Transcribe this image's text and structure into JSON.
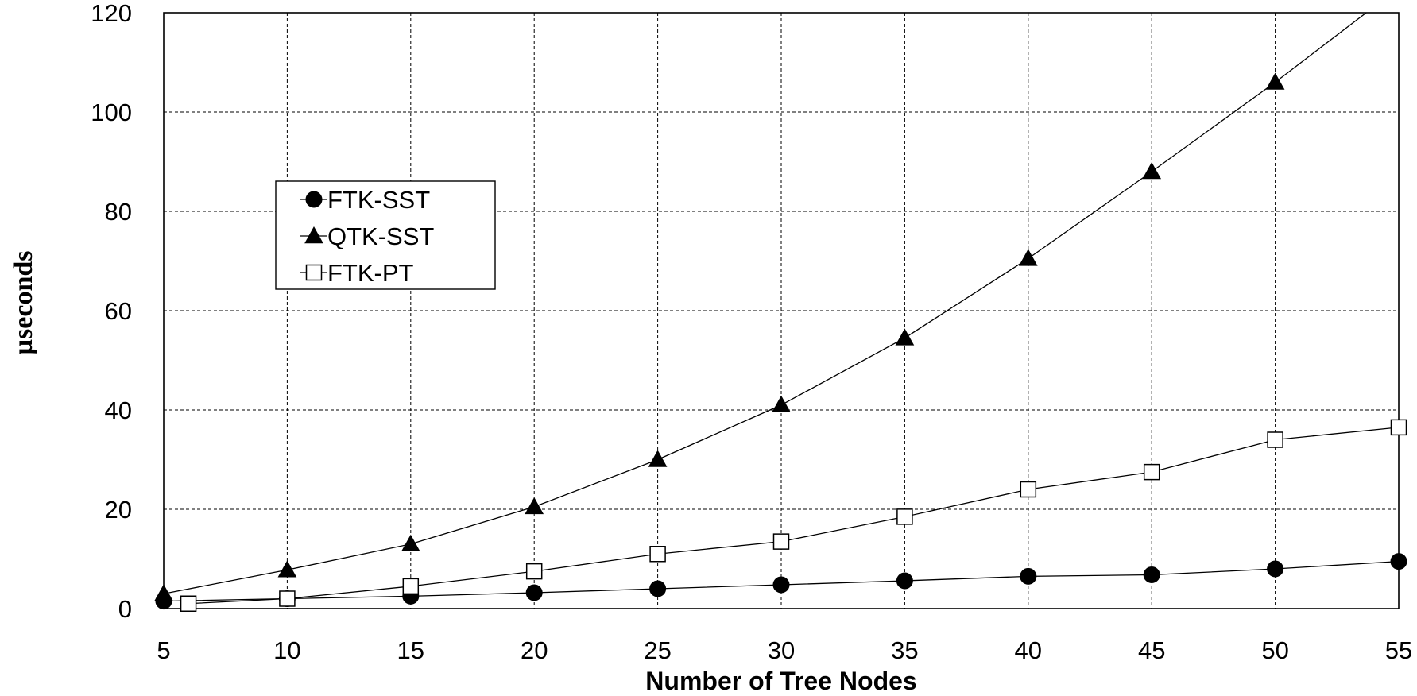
{
  "chart_data": {
    "type": "line",
    "title": "",
    "xlabel": "Number of Tree Nodes",
    "ylabel": "µseconds",
    "xlim": [
      5,
      55
    ],
    "ylim": [
      0,
      120
    ],
    "xticks": [
      5,
      10,
      15,
      20,
      25,
      30,
      35,
      40,
      45,
      50,
      55
    ],
    "yticks": [
      0,
      20,
      40,
      60,
      80,
      100,
      120
    ],
    "grid": true,
    "legend_position": "upper-left",
    "series": [
      {
        "name": "FTK-SST",
        "marker": "circle",
        "x": [
          5,
          10,
          15,
          20,
          25,
          30,
          35,
          40,
          45,
          50,
          55
        ],
        "y": [
          1.5,
          2.0,
          2.5,
          3.2,
          4.0,
          4.8,
          5.6,
          6.5,
          6.8,
          8.0,
          9.5
        ]
      },
      {
        "name": "QTK-SST",
        "marker": "triangle",
        "x": [
          5,
          10,
          15,
          20,
          25,
          30,
          35,
          40,
          45,
          50,
          55
        ],
        "y": [
          3.0,
          7.8,
          13.0,
          20.5,
          30.0,
          41.0,
          54.5,
          70.5,
          88.0,
          106.0,
          125.0
        ]
      },
      {
        "name": "FTK-PT",
        "marker": "square-open",
        "x": [
          6,
          10,
          15,
          20,
          25,
          30,
          35,
          40,
          45,
          50,
          55
        ],
        "y": [
          1.0,
          2.0,
          4.5,
          7.5,
          11.0,
          13.5,
          18.5,
          24.0,
          27.5,
          34.0,
          36.5
        ]
      }
    ]
  }
}
